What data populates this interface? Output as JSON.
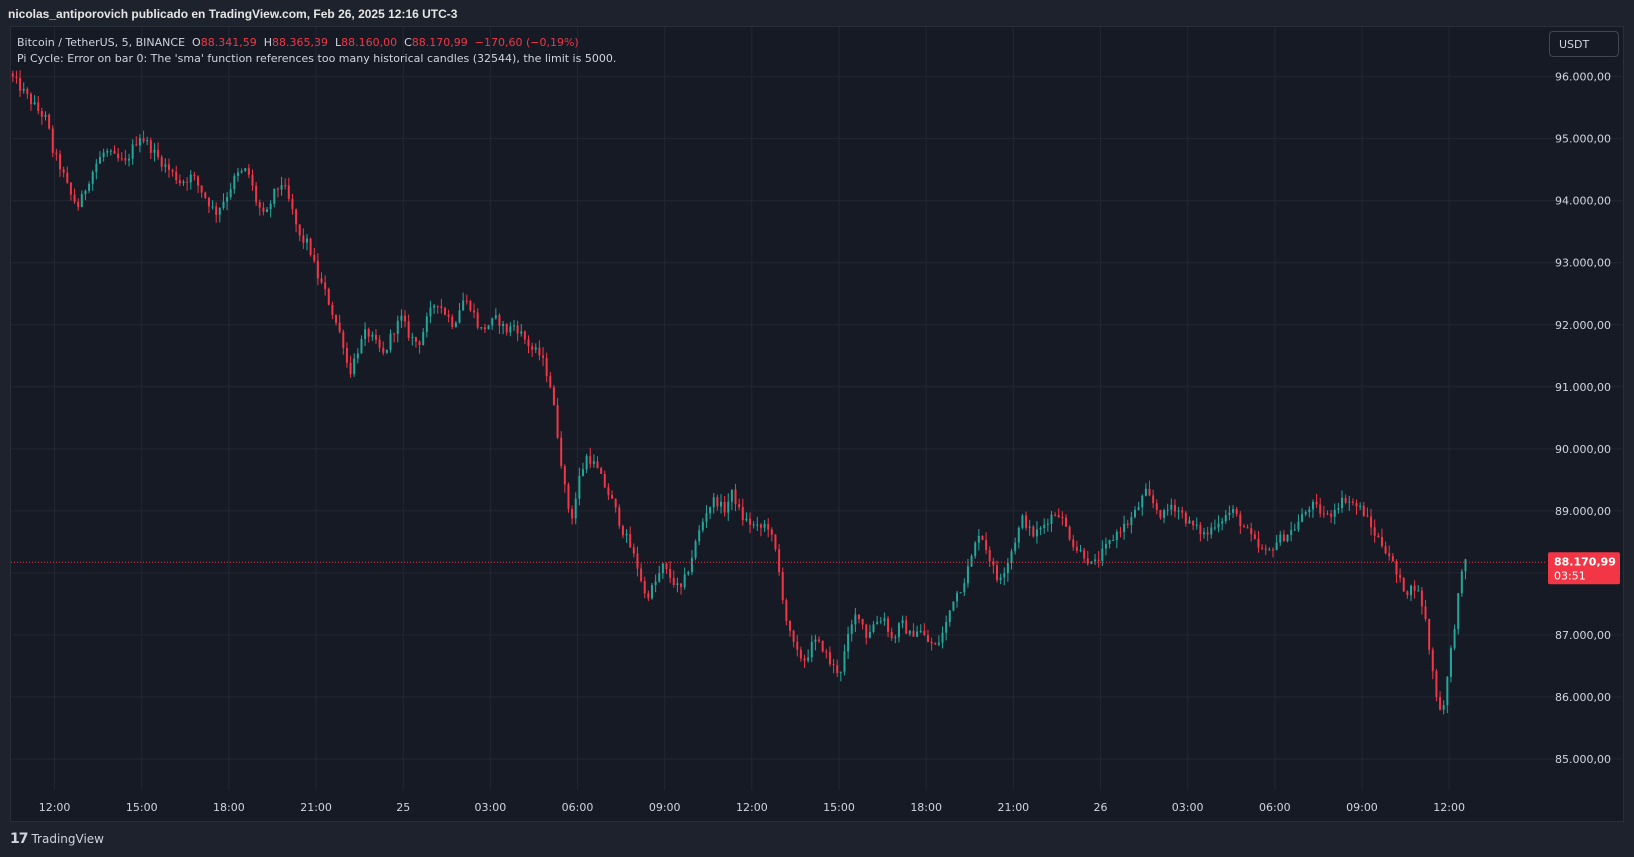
{
  "header": {
    "publisher": "nicolas_antiporovich publicado en TradingView.com, Feb 26, 2025 12:16 UTC-3"
  },
  "legend": {
    "symbol": "Bitcoin / TetherUS, 5, BINANCE",
    "open_label": "O",
    "open_value": "88.341,59",
    "high_label": "H",
    "high_value": "88.365,39",
    "low_label": "L",
    "low_value": "88.160,00",
    "close_label": "C",
    "close_value": "88.170,99",
    "change": "−170,60 (−0,19%)",
    "error": "Pi Cycle: Error on bar 0: The 'sma' function references too many historical candles (32544), the limit is 5000."
  },
  "toolbar": {
    "currency_label": "USDT"
  },
  "price_tag": {
    "price": "88.170,99",
    "countdown": "03:51"
  },
  "footer": {
    "brand_logo": "17",
    "brand": "TradingView"
  },
  "colors": {
    "up": "#26a69a",
    "down": "#f23645",
    "background": "#161a25",
    "grid": "#232733",
    "text": "#d1d4dc",
    "price_line": "#f23645"
  },
  "chart_data": {
    "type": "candlestick",
    "symbol": "Bitcoin / TetherUS",
    "interval": "5",
    "exchange": "BINANCE",
    "ylim": [
      84500,
      96800
    ],
    "y_ticks": [
      "85.000,00",
      "86.000,00",
      "87.000,00",
      "88.000,00",
      "89.000,00",
      "90.000,00",
      "91.000,00",
      "92.000,00",
      "93.000,00",
      "94.000,00",
      "95.000,00",
      "96.000,00"
    ],
    "y_tick_values": [
      85000,
      86000,
      87000,
      88000,
      89000,
      90000,
      91000,
      92000,
      93000,
      94000,
      95000,
      96000
    ],
    "x_ticks": [
      "12:00",
      "15:00",
      "18:00",
      "21:00",
      "25",
      "03:00",
      "06:00",
      "09:00",
      "12:00",
      "15:00",
      "18:00",
      "21:00",
      "26",
      "03:00",
      "06:00",
      "09:00",
      "12:00"
    ],
    "x_tick_hours": [
      0,
      3,
      6,
      9,
      12,
      15,
      18,
      21,
      24,
      27,
      30,
      33,
      36,
      39,
      42,
      45,
      48
    ],
    "x_start_hours": -1.5,
    "x_end_hours": 49.2,
    "current_price": 88170.99,
    "path": [
      [
        -1.5,
        96050
      ],
      [
        -1.0,
        95750
      ],
      [
        -0.5,
        95450
      ],
      [
        -0.2,
        95300
      ],
      [
        0.0,
        94800
      ],
      [
        0.3,
        94500
      ],
      [
        0.6,
        94100
      ],
      [
        0.9,
        93900
      ],
      [
        1.2,
        94300
      ],
      [
        1.5,
        94600
      ],
      [
        1.8,
        94800
      ],
      [
        2.1,
        94700
      ],
      [
        2.5,
        94600
      ],
      [
        2.8,
        94900
      ],
      [
        3.0,
        95050
      ],
      [
        3.3,
        94900
      ],
      [
        3.6,
        94700
      ],
      [
        4.0,
        94500
      ],
      [
        4.4,
        94300
      ],
      [
        4.8,
        94400
      ],
      [
        5.2,
        94100
      ],
      [
        5.6,
        93800
      ],
      [
        6.0,
        94100
      ],
      [
        6.3,
        94400
      ],
      [
        6.7,
        94500
      ],
      [
        7.0,
        94000
      ],
      [
        7.3,
        93700
      ],
      [
        7.6,
        94100
      ],
      [
        7.9,
        94300
      ],
      [
        8.2,
        93900
      ],
      [
        8.5,
        93400
      ],
      [
        8.8,
        93300
      ],
      [
        9.1,
        92800
      ],
      [
        9.4,
        92500
      ],
      [
        9.7,
        92100
      ],
      [
        10.0,
        91700
      ],
      [
        10.2,
        91200
      ],
      [
        10.5,
        91600
      ],
      [
        10.8,
        91900
      ],
      [
        11.1,
        91700
      ],
      [
        11.4,
        91500
      ],
      [
        11.7,
        91900
      ],
      [
        12.0,
        92100
      ],
      [
        12.3,
        91800
      ],
      [
        12.6,
        91700
      ],
      [
        12.9,
        92100
      ],
      [
        13.2,
        92400
      ],
      [
        13.5,
        92200
      ],
      [
        13.8,
        92000
      ],
      [
        14.1,
        92400
      ],
      [
        14.4,
        92300
      ],
      [
        14.7,
        91900
      ],
      [
        15.0,
        92000
      ],
      [
        15.3,
        92100
      ],
      [
        15.6,
        91900
      ],
      [
        15.9,
        92000
      ],
      [
        16.2,
        91800
      ],
      [
        16.5,
        91600
      ],
      [
        16.8,
        91500
      ],
      [
        17.1,
        91100
      ],
      [
        17.3,
        90500
      ],
      [
        17.5,
        89800
      ],
      [
        17.7,
        89100
      ],
      [
        17.9,
        88900
      ],
      [
        18.1,
        89500
      ],
      [
        18.4,
        89900
      ],
      [
        18.7,
        89700
      ],
      [
        19.0,
        89400
      ],
      [
        19.3,
        89100
      ],
      [
        19.6,
        88700
      ],
      [
        19.9,
        88400
      ],
      [
        20.2,
        88000
      ],
      [
        20.4,
        87600
      ],
      [
        20.7,
        87800
      ],
      [
        21.0,
        88100
      ],
      [
        21.3,
        87900
      ],
      [
        21.6,
        87700
      ],
      [
        21.9,
        88100
      ],
      [
        22.2,
        88600
      ],
      [
        22.5,
        89000
      ],
      [
        22.8,
        89200
      ],
      [
        23.1,
        89000
      ],
      [
        23.4,
        89300
      ],
      [
        23.7,
        88900
      ],
      [
        24.0,
        88800
      ],
      [
        24.3,
        88700
      ],
      [
        24.6,
        88800
      ],
      [
        24.9,
        88300
      ],
      [
        25.1,
        87700
      ],
      [
        25.3,
        87100
      ],
      [
        25.6,
        86700
      ],
      [
        25.9,
        86600
      ],
      [
        26.2,
        86900
      ],
      [
        26.5,
        86800
      ],
      [
        26.8,
        86500
      ],
      [
        27.1,
        86400
      ],
      [
        27.4,
        87000
      ],
      [
        27.7,
        87400
      ],
      [
        28.0,
        87000
      ],
      [
        28.3,
        87200
      ],
      [
        28.6,
        87300
      ],
      [
        28.9,
        86900
      ],
      [
        29.2,
        87200
      ],
      [
        29.5,
        87000
      ],
      [
        29.8,
        87100
      ],
      [
        30.1,
        86900
      ],
      [
        30.4,
        86800
      ],
      [
        30.7,
        87100
      ],
      [
        31.0,
        87600
      ],
      [
        31.3,
        87800
      ],
      [
        31.6,
        88200
      ],
      [
        31.9,
        88700
      ],
      [
        32.2,
        88300
      ],
      [
        32.5,
        87900
      ],
      [
        32.8,
        88100
      ],
      [
        33.1,
        88500
      ],
      [
        33.4,
        88900
      ],
      [
        33.7,
        88600
      ],
      [
        34.0,
        88700
      ],
      [
        34.3,
        88900
      ],
      [
        34.6,
        89000
      ],
      [
        34.9,
        88700
      ],
      [
        35.2,
        88400
      ],
      [
        35.5,
        88300
      ],
      [
        35.8,
        88100
      ],
      [
        36.1,
        88300
      ],
      [
        36.4,
        88500
      ],
      [
        36.7,
        88700
      ],
      [
        37.0,
        88800
      ],
      [
        37.3,
        89000
      ],
      [
        37.6,
        89300
      ],
      [
        37.9,
        89100
      ],
      [
        38.2,
        88900
      ],
      [
        38.5,
        89100
      ],
      [
        38.8,
        89000
      ],
      [
        39.1,
        88800
      ],
      [
        39.4,
        88700
      ],
      [
        39.7,
        88600
      ],
      [
        40.0,
        88800
      ],
      [
        40.3,
        88900
      ],
      [
        40.6,
        89000
      ],
      [
        40.9,
        88800
      ],
      [
        41.2,
        88600
      ],
      [
        41.5,
        88400
      ],
      [
        41.8,
        88300
      ],
      [
        42.1,
        88500
      ],
      [
        42.4,
        88600
      ],
      [
        42.7,
        88700
      ],
      [
        43.0,
        88900
      ],
      [
        43.3,
        89100
      ],
      [
        43.6,
        89000
      ],
      [
        43.9,
        88900
      ],
      [
        44.2,
        89100
      ],
      [
        44.5,
        89200
      ],
      [
        44.8,
        89100
      ],
      [
        45.1,
        89000
      ],
      [
        45.4,
        88700
      ],
      [
        45.7,
        88500
      ],
      [
        46.0,
        88300
      ],
      [
        46.3,
        87900
      ],
      [
        46.6,
        87700
      ],
      [
        46.9,
        87800
      ],
      [
        47.2,
        87400
      ],
      [
        47.4,
        86700
      ],
      [
        47.6,
        86100
      ],
      [
        47.8,
        85700
      ],
      [
        48.0,
        86300
      ],
      [
        48.2,
        87000
      ],
      [
        48.4,
        87700
      ],
      [
        48.6,
        88200
      ]
    ]
  }
}
